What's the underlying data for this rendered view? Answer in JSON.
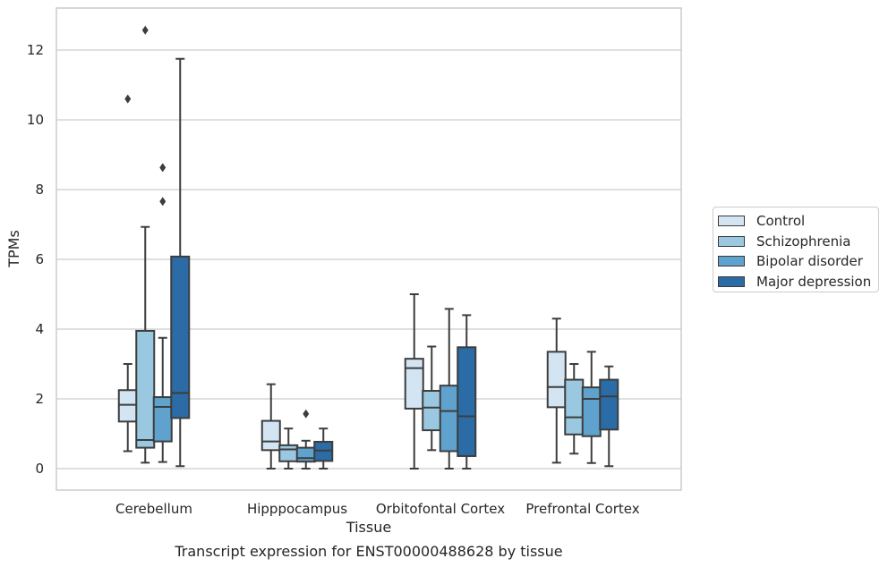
{
  "chart_data": {
    "type": "box",
    "title": "Transcript expression for ENST00000488628 by tissue",
    "xlabel": "Tissue",
    "ylabel": "TPMs",
    "ylim": [
      -0.6,
      13.1
    ],
    "yticks": [
      0,
      2,
      4,
      6,
      8,
      10,
      12
    ],
    "ytick_labels": [
      "0",
      "2",
      "4",
      "6",
      "8",
      "10",
      "12"
    ],
    "grid": "horizontal",
    "legend_position": "right",
    "categories": [
      "Cerebellum",
      "Hipppocampus",
      "Orbitofontal Cortex",
      "Prefrontal Cortex"
    ],
    "series": [
      {
        "name": "Control",
        "color": "#d3e4f3",
        "boxes": [
          {
            "whislo": 0.5,
            "q1": 1.35,
            "med": 1.83,
            "q3": 2.25,
            "whishi": 3.0,
            "fliers": [
              10.6
            ]
          },
          {
            "whislo": 0.0,
            "q1": 0.53,
            "med": 0.78,
            "q3": 1.37,
            "whishi": 2.42,
            "fliers": []
          },
          {
            "whislo": 0.0,
            "q1": 1.72,
            "med": 2.88,
            "q3": 3.15,
            "whishi": 5.0,
            "fliers": []
          },
          {
            "whislo": 0.17,
            "q1": 1.76,
            "med": 2.34,
            "q3": 3.35,
            "whishi": 4.3,
            "fliers": []
          }
        ]
      },
      {
        "name": "Schizophrenia",
        "color": "#9ac8e0",
        "boxes": [
          {
            "whislo": 0.17,
            "q1": 0.6,
            "med": 0.82,
            "q3": 3.95,
            "whishi": 6.93,
            "fliers": [
              12.57
            ]
          },
          {
            "whislo": 0.0,
            "q1": 0.21,
            "med": 0.55,
            "q3": 0.67,
            "whishi": 1.15,
            "fliers": []
          },
          {
            "whislo": 0.53,
            "q1": 1.1,
            "med": 1.75,
            "q3": 2.23,
            "whishi": 3.5,
            "fliers": []
          },
          {
            "whislo": 0.43,
            "q1": 0.98,
            "med": 1.47,
            "q3": 2.55,
            "whishi": 3.0,
            "fliers": []
          }
        ]
      },
      {
        "name": "Bipolar disorder",
        "color": "#5fa2ce",
        "boxes": [
          {
            "whislo": 0.19,
            "q1": 0.78,
            "med": 1.77,
            "q3": 2.05,
            "whishi": 3.75,
            "fliers": [
              7.66,
              8.63
            ]
          },
          {
            "whislo": 0.0,
            "q1": 0.2,
            "med": 0.3,
            "q3": 0.6,
            "whishi": 0.8,
            "fliers": [
              1.57
            ]
          },
          {
            "whislo": 0.0,
            "q1": 0.5,
            "med": 1.65,
            "q3": 2.38,
            "whishi": 4.58,
            "fliers": []
          },
          {
            "whislo": 0.16,
            "q1": 0.93,
            "med": 2.0,
            "q3": 2.33,
            "whishi": 3.35,
            "fliers": []
          }
        ]
      },
      {
        "name": "Major depression",
        "color": "#2b6ba6",
        "boxes": [
          {
            "whislo": 0.07,
            "q1": 1.45,
            "med": 2.17,
            "q3": 6.08,
            "whishi": 11.75,
            "fliers": []
          },
          {
            "whislo": 0.0,
            "q1": 0.22,
            "med": 0.52,
            "q3": 0.77,
            "whishi": 1.15,
            "fliers": []
          },
          {
            "whislo": 0.0,
            "q1": 0.36,
            "med": 1.5,
            "q3": 3.48,
            "whishi": 4.4,
            "fliers": []
          },
          {
            "whislo": 0.07,
            "q1": 1.12,
            "med": 2.07,
            "q3": 2.55,
            "whishi": 2.93,
            "fliers": []
          }
        ]
      }
    ]
  }
}
